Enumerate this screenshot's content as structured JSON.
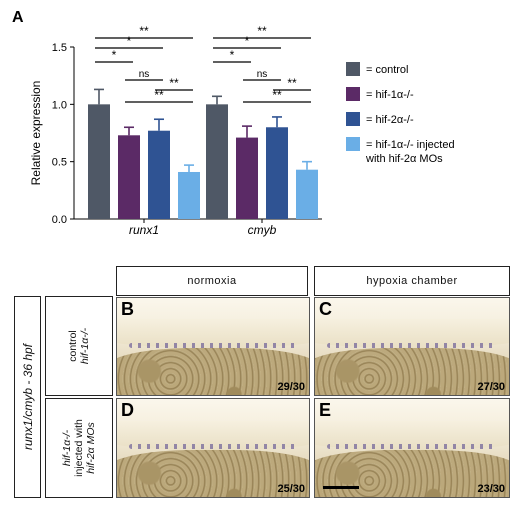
{
  "panel_a": {
    "label": "A"
  },
  "chart_data": {
    "type": "bar",
    "ylabel": "Relative expression",
    "ylim": [
      0,
      1.5
    ],
    "yticks": [
      "0.0",
      "0.5",
      "1.0",
      "1.5"
    ],
    "categories": [
      "runx1",
      "cmyb"
    ],
    "series": [
      {
        "name": "= control",
        "values": [
          1.0,
          1.0
        ],
        "errors": [
          0.13,
          0.07
        ],
        "color": "#4f5866"
      },
      {
        "name": "= hif-1α-/-",
        "values": [
          0.73,
          0.71
        ],
        "errors": [
          0.07,
          0.1
        ],
        "color": "#5b2a66"
      },
      {
        "name": "= hif-2α-/-",
        "values": [
          0.77,
          0.8
        ],
        "errors": [
          0.1,
          0.09
        ],
        "color": "#2f5393"
      },
      {
        "name": "= hif-1α-/- injected with hif-2α MOs",
        "values": [
          0.41,
          0.43
        ],
        "errors": [
          0.06,
          0.07
        ],
        "color": "#6aaee6"
      }
    ],
    "significance": [
      {
        "group": "runx1",
        "pair": [
          0,
          1
        ],
        "label": "*"
      },
      {
        "group": "runx1",
        "pair": [
          0,
          2
        ],
        "label": "*"
      },
      {
        "group": "runx1",
        "pair": [
          0,
          3
        ],
        "label": "**"
      },
      {
        "group": "runx1",
        "pair": [
          1,
          2
        ],
        "label": "ns"
      },
      {
        "group": "runx1",
        "pair": [
          1,
          3
        ],
        "label": "**"
      },
      {
        "group": "runx1",
        "pair": [
          2,
          3
        ],
        "label": "**"
      },
      {
        "group": "cmyb",
        "pair": [
          0,
          1
        ],
        "label": "*"
      },
      {
        "group": "cmyb",
        "pair": [
          0,
          2
        ],
        "label": "*"
      },
      {
        "group": "cmyb",
        "pair": [
          0,
          3
        ],
        "label": "**"
      },
      {
        "group": "cmyb",
        "pair": [
          1,
          2
        ],
        "label": "ns"
      },
      {
        "group": "cmyb",
        "pair": [
          1,
          3
        ],
        "label": "**"
      },
      {
        "group": "cmyb",
        "pair": [
          2,
          3
        ],
        "label": "**"
      }
    ],
    "legend_position": "right"
  },
  "panel_b": {
    "outer_label": "runx1/cmyb - 36 hpf",
    "columns": [
      "normoxia",
      "hypoxia chamber"
    ],
    "rows": [
      {
        "line1": "control",
        "line2": "hif-1α-/-"
      },
      {
        "line1": "hif-1α-/-",
        "line2": "injected with",
        "line3": "hif-2α MOs"
      }
    ],
    "panels": [
      {
        "letter": "B",
        "count": "29/30"
      },
      {
        "letter": "C",
        "count": "27/30"
      },
      {
        "letter": "D",
        "count": "25/30"
      },
      {
        "letter": "E",
        "count": "23/30"
      }
    ]
  }
}
